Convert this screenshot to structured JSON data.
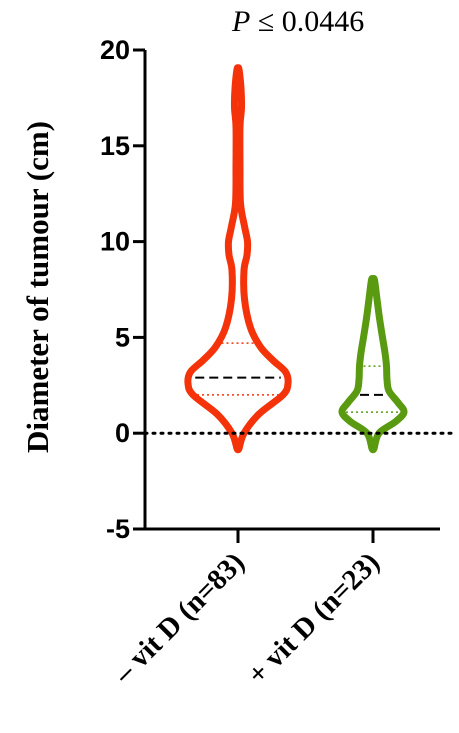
{
  "chart_data": {
    "type": "violin",
    "annotation": {
      "label": "P",
      "text": "≤ 0.0446"
    },
    "ylabel": "Diameter of tumour (cm)",
    "ylim": [
      -5,
      20
    ],
    "yticks": [
      -5,
      0,
      5,
      10,
      15,
      20
    ],
    "reference_line": {
      "y": 0,
      "style": "dotted"
    },
    "categories": [
      "– vit D (n=83)",
      "+ vit D (n=23)"
    ],
    "series": [
      {
        "color": "#f5330a",
        "min": -0.8,
        "max": 19,
        "median": 2.9,
        "q1": 2.0,
        "q3": 4.7,
        "density": [
          [
            -0.8,
            0.02
          ],
          [
            0,
            0.12
          ],
          [
            1,
            0.42
          ],
          [
            2,
            0.9
          ],
          [
            2.6,
            1.0
          ],
          [
            3.2,
            0.95
          ],
          [
            3.8,
            0.7
          ],
          [
            4.5,
            0.45
          ],
          [
            5.5,
            0.25
          ],
          [
            7,
            0.13
          ],
          [
            8.5,
            0.12
          ],
          [
            9.3,
            0.18
          ],
          [
            10,
            0.19
          ],
          [
            10.8,
            0.13
          ],
          [
            12,
            0.05
          ],
          [
            14,
            0.04
          ],
          [
            16,
            0.04
          ],
          [
            17,
            0.07
          ],
          [
            18,
            0.06
          ],
          [
            19,
            0.02
          ]
        ]
      },
      {
        "color": "#5a9a10",
        "min": -0.8,
        "max": 8,
        "median": 2.0,
        "q1": 1.1,
        "q3": 3.5,
        "density": [
          [
            -0.8,
            0.02
          ],
          [
            0,
            0.12
          ],
          [
            0.6,
            0.45
          ],
          [
            1.1,
            0.62
          ],
          [
            1.6,
            0.5
          ],
          [
            2.2,
            0.32
          ],
          [
            2.8,
            0.28
          ],
          [
            3.5,
            0.27
          ],
          [
            4.2,
            0.24
          ],
          [
            5,
            0.19
          ],
          [
            6,
            0.13
          ],
          [
            7,
            0.08
          ],
          [
            8,
            0.03
          ]
        ]
      }
    ]
  }
}
